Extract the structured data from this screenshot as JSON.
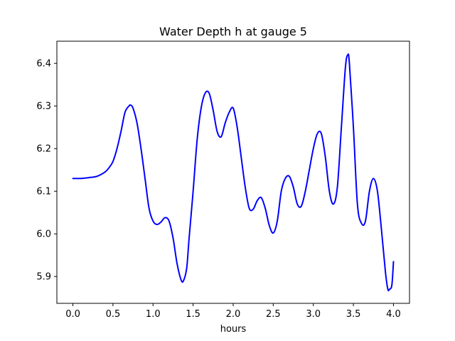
{
  "chart_data": {
    "type": "line",
    "title": "Water Depth h at gauge 5",
    "xlabel": "hours",
    "ylabel": "",
    "xlim": [
      -0.2,
      4.2
    ],
    "ylim": [
      5.837,
      6.452
    ],
    "xticks": [
      0.0,
      0.5,
      1.0,
      1.5,
      2.0,
      2.5,
      3.0,
      3.5,
      4.0
    ],
    "xtick_labels": [
      "0.0",
      "0.5",
      "1.0",
      "1.5",
      "2.0",
      "2.5",
      "3.0",
      "3.5",
      "4.0"
    ],
    "yticks": [
      5.9,
      6.0,
      6.1,
      6.2,
      6.3,
      6.4
    ],
    "ytick_labels": [
      "5.9",
      "6.0",
      "6.1",
      "6.2",
      "6.3",
      "6.4"
    ],
    "grid": false,
    "series": [
      {
        "color": "#0000ff",
        "x": [
          0.0,
          0.1,
          0.2,
          0.3,
          0.4,
          0.45,
          0.5,
          0.55,
          0.6,
          0.65,
          0.7,
          0.72,
          0.75,
          0.8,
          0.85,
          0.9,
          0.95,
          1.0,
          1.05,
          1.1,
          1.15,
          1.2,
          1.25,
          1.3,
          1.35,
          1.38,
          1.42,
          1.45,
          1.5,
          1.55,
          1.6,
          1.65,
          1.7,
          1.75,
          1.8,
          1.85,
          1.9,
          1.95,
          2.0,
          2.05,
          2.1,
          2.15,
          2.2,
          2.25,
          2.3,
          2.35,
          2.4,
          2.45,
          2.5,
          2.55,
          2.6,
          2.65,
          2.7,
          2.75,
          2.8,
          2.85,
          2.9,
          2.95,
          3.0,
          3.05,
          3.1,
          3.15,
          3.2,
          3.25,
          3.3,
          3.35,
          3.4,
          3.43,
          3.45,
          3.5,
          3.55,
          3.6,
          3.65,
          3.7,
          3.75,
          3.8,
          3.85,
          3.9,
          3.93,
          3.95,
          3.98,
          4.0
        ],
        "y": [
          6.13,
          6.13,
          6.132,
          6.135,
          6.145,
          6.155,
          6.17,
          6.2,
          6.24,
          6.285,
          6.3,
          6.302,
          6.295,
          6.26,
          6.2,
          6.13,
          6.06,
          6.03,
          6.022,
          6.028,
          6.038,
          6.03,
          5.99,
          5.93,
          5.892,
          5.89,
          5.92,
          5.99,
          6.1,
          6.22,
          6.295,
          6.33,
          6.33,
          6.29,
          6.24,
          6.228,
          6.26,
          6.285,
          6.295,
          6.25,
          6.18,
          6.11,
          6.06,
          6.058,
          6.078,
          6.085,
          6.06,
          6.02,
          6.002,
          6.03,
          6.1,
          6.13,
          6.135,
          6.11,
          6.07,
          6.065,
          6.1,
          6.15,
          6.2,
          6.235,
          6.235,
          6.18,
          6.1,
          6.07,
          6.11,
          6.25,
          6.39,
          6.42,
          6.4,
          6.25,
          6.07,
          6.025,
          6.03,
          6.1,
          6.13,
          6.1,
          6.01,
          5.91,
          5.87,
          5.87,
          5.88,
          5.935
        ]
      }
    ]
  }
}
